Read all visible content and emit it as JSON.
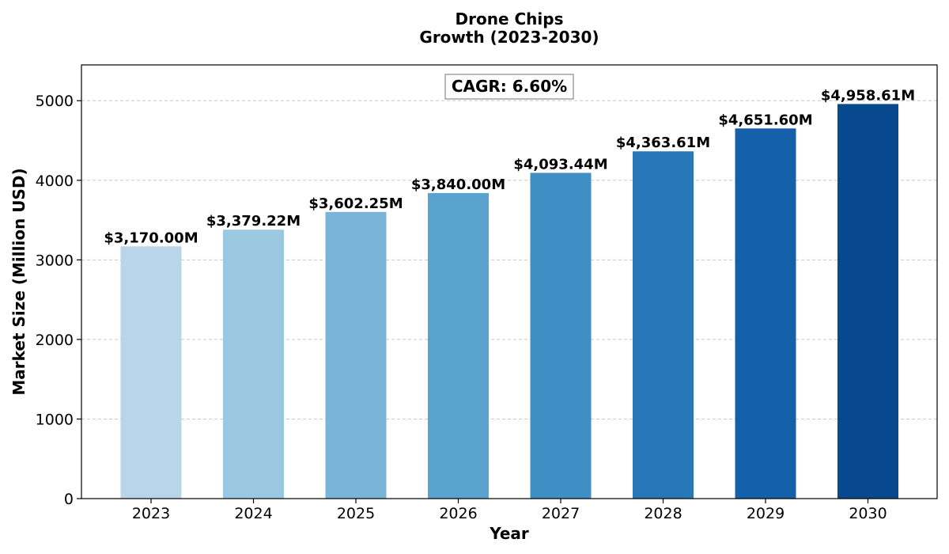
{
  "chart_data": {
    "type": "bar",
    "title_lines": [
      "Drone Chips",
      "Growth (2023-2030)"
    ],
    "xlabel": "Year",
    "ylabel": "Market Size (Million USD)",
    "categories": [
      "2023",
      "2024",
      "2025",
      "2026",
      "2027",
      "2028",
      "2029",
      "2030"
    ],
    "values": [
      3170.0,
      3379.22,
      3602.25,
      3840.0,
      4093.44,
      4363.61,
      4651.6,
      4958.61
    ],
    "data_labels": [
      "$3,170.00M",
      "$3,379.22M",
      "$3,602.25M",
      "$3,840.00M",
      "$4,093.44M",
      "$4,363.61M",
      "$4,651.60M",
      "$4,958.61M"
    ],
    "bar_colors": [
      "#b9d5ea",
      "#9ac8e0",
      "#7ab5d9",
      "#5ba3cf",
      "#3f8fc5",
      "#2877b8",
      "#1460aa",
      "#08488e"
    ],
    "yticks": [
      0,
      1000,
      2000,
      3000,
      4000,
      5000
    ],
    "ylim": [
      0,
      5450
    ],
    "grid": "y-dashed",
    "annotation": "CAGR: 6.60%"
  }
}
